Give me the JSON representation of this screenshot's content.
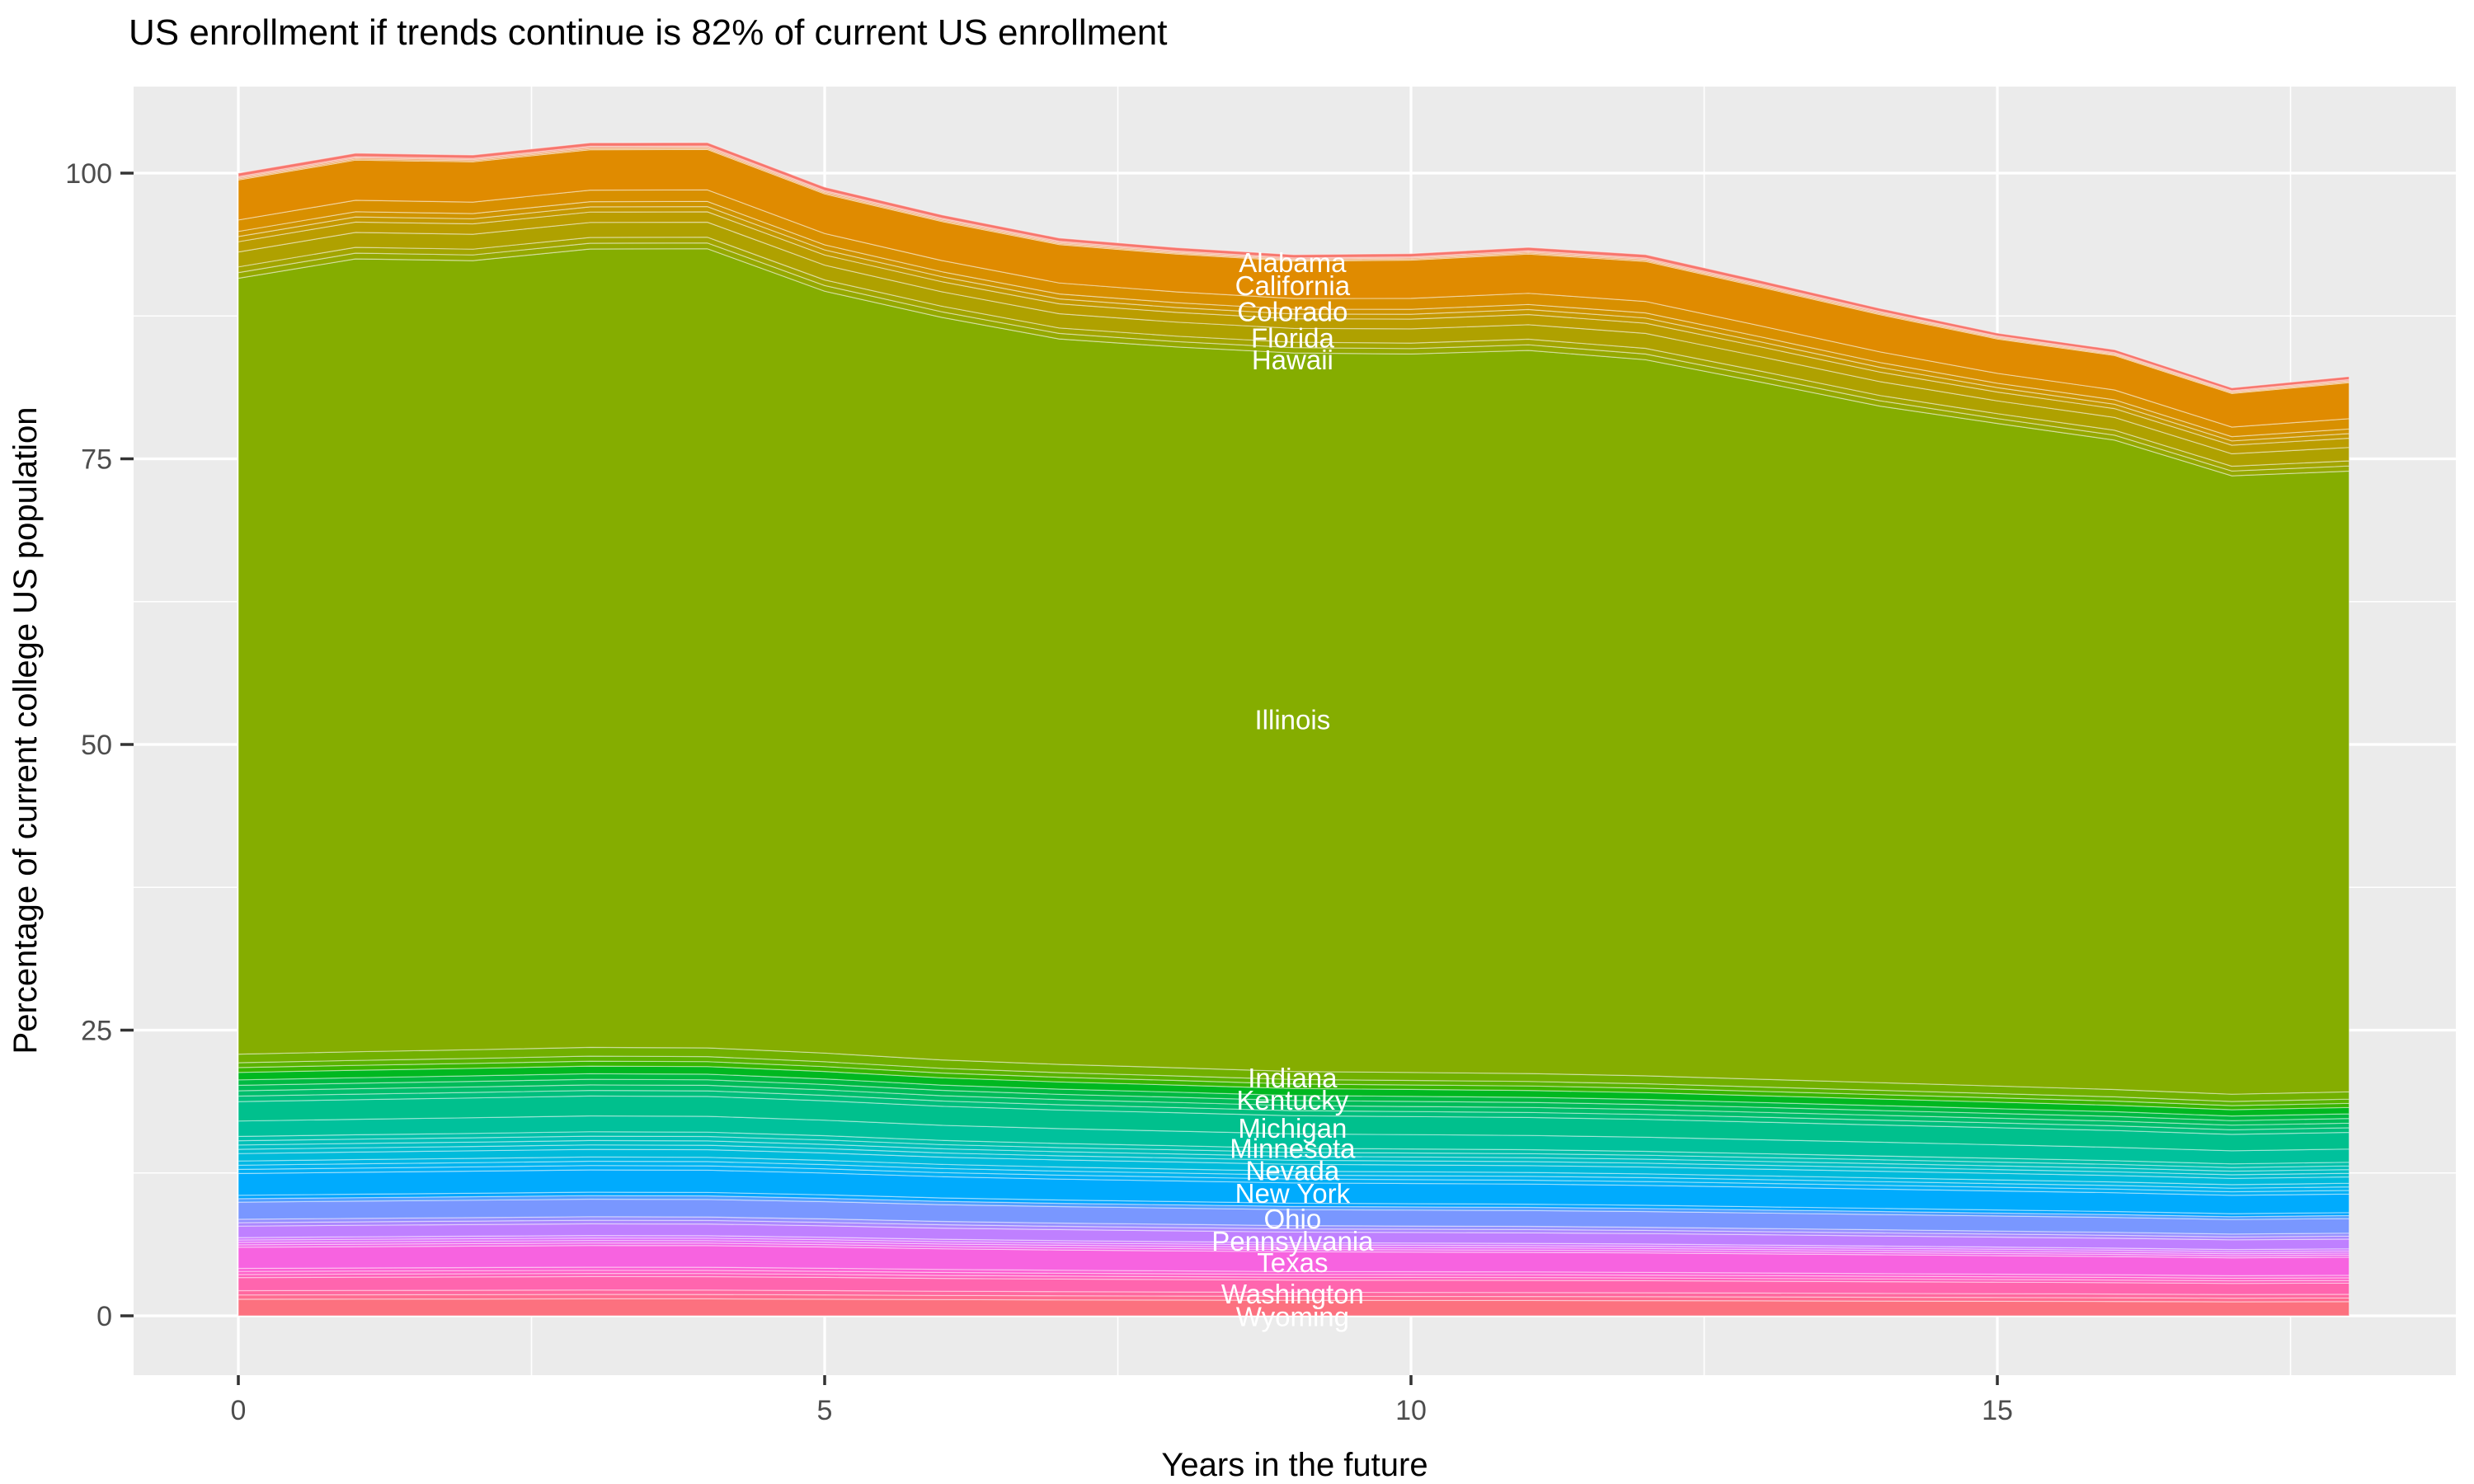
{
  "title": "US enrollment if trends continue is 82% of current US enrollment",
  "x_axis": {
    "title": "Years in the future",
    "tick_labels": [
      "0",
      "5",
      "10",
      "15"
    ],
    "tick_values": [
      0,
      5,
      10,
      15
    ],
    "minor_tick_values": [
      2.5,
      7.5,
      12.5,
      17.5
    ]
  },
  "y_axis": {
    "title": "Percentage of current college US population",
    "tick_labels": [
      "0",
      "25",
      "50",
      "75",
      "100"
    ],
    "tick_values": [
      0,
      25,
      50,
      75,
      100
    ],
    "minor_tick_values": [
      12.5,
      37.5,
      62.5,
      87.5
    ]
  },
  "colors": {
    "panel_background": "#EBEBEB",
    "grid": "#FFFFFF",
    "tick_mark": "#333333",
    "tick_label": "#4D4D4D",
    "axis_title": "#000000",
    "title": "#000000",
    "band_label": "#FFFFFF",
    "band_separator": "rgba(255,255,255,0.45)"
  },
  "chart_data": {
    "type": "area",
    "stacked": true,
    "x": [
      0,
      1,
      2,
      3,
      4,
      5,
      6,
      7,
      8,
      9,
      10,
      11,
      12,
      13,
      14,
      15,
      16,
      17,
      18
    ],
    "x_range": [
      0,
      18
    ],
    "y_unit": "percent",
    "final_total_pct": 82.2,
    "peak_total_pct": 102.7,
    "label_x_year": 8.99,
    "palette": {
      "model": "hcl",
      "h_start": 15,
      "h_step": 7.2,
      "c": 100,
      "l": 65,
      "n": 50
    },
    "shapes": {
      "top": [
        1.0,
        1.005,
        1.005,
        1.01,
        1.01,
        0.99,
        0.975,
        0.96,
        0.945,
        0.935,
        0.955,
        0.98,
        1.0,
        0.965,
        0.93,
        0.86,
        0.86,
        0.837,
        0.9
      ],
      "illinois": [
        1.0,
        1.022,
        1.017,
        1.029,
        1.03,
        0.982,
        0.957,
        0.935,
        0.929,
        0.926,
        0.926,
        0.932,
        0.923,
        0.898,
        0.872,
        0.854,
        0.837,
        0.797,
        0.8
      ],
      "bottom": [
        1.0,
        1.009,
        1.017,
        1.026,
        1.024,
        1.004,
        0.978,
        0.961,
        0.948,
        0.934,
        0.93,
        0.926,
        0.917,
        0.904,
        0.891,
        0.878,
        0.865,
        0.847,
        0.856
      ]
    },
    "series": [
      {
        "label": "Alabama",
        "bands": 1,
        "base": 0.3,
        "shape": "top",
        "label_pct": 92.2
      },
      {
        "label": null,
        "bands": 3,
        "base": 0.3,
        "shape": "top"
      },
      {
        "label": "California",
        "bands": 1,
        "base": 3.5,
        "shape": "top",
        "label_pct": 90.2
      },
      {
        "label": "Colorado",
        "bands": 1,
        "base": 1.0,
        "shape": "top",
        "label_pct": 87.9
      },
      {
        "label": null,
        "bands": 2,
        "base": 0.9,
        "shape": "top"
      },
      {
        "label": "Florida",
        "bands": 1,
        "base": 0.9,
        "shape": "top",
        "label_pct": 85.6
      },
      {
        "label": null,
        "bands": 1,
        "base": 1.3,
        "shape": "top"
      },
      {
        "label": "Hawaii",
        "bands": 1,
        "base": 0.5,
        "shape": "top",
        "label_pct": 83.7
      },
      {
        "label": null,
        "bands": 1,
        "base": 0.5,
        "shape": "top"
      },
      {
        "label": "Illinois",
        "bands": 1,
        "base": 67.9,
        "shape": "illinois",
        "label_pct": 52.2
      },
      {
        "label": "Indiana",
        "bands": 1,
        "base": 0.75,
        "shape": "bottom",
        "label_pct": 20.85
      },
      {
        "label": null,
        "bands": 2,
        "base": 0.85,
        "shape": "bottom"
      },
      {
        "label": "Kentucky",
        "bands": 1,
        "base": 0.65,
        "shape": "bottom",
        "label_pct": 18.9
      },
      {
        "label": null,
        "bands": 4,
        "base": 1.9,
        "shape": "bottom"
      },
      {
        "label": "Michigan",
        "bands": 1,
        "base": 1.7,
        "shape": "bottom",
        "label_pct": 16.45
      },
      {
        "label": "Minnesota",
        "bands": 1,
        "base": 1.35,
        "shape": "bottom",
        "label_pct": 14.7
      },
      {
        "label": null,
        "bands": 4,
        "base": 1.5,
        "shape": "bottom"
      },
      {
        "label": "Nevada",
        "bands": 1,
        "base": 0.65,
        "shape": "bottom",
        "label_pct": 12.75
      },
      {
        "label": null,
        "bands": 3,
        "base": 1.1,
        "shape": "bottom"
      },
      {
        "label": "New York",
        "bands": 1,
        "base": 1.9,
        "shape": "bottom",
        "label_pct": 10.75
      },
      {
        "label": null,
        "bands": 2,
        "base": 0.6,
        "shape": "bottom"
      },
      {
        "label": "Ohio",
        "bands": 1,
        "base": 1.5,
        "shape": "bottom",
        "label_pct": 8.5
      },
      {
        "label": null,
        "bands": 2,
        "base": 0.6,
        "shape": "bottom"
      },
      {
        "label": "Pennsylvania",
        "bands": 1,
        "base": 1.0,
        "shape": "bottom",
        "label_pct": 6.55
      },
      {
        "label": null,
        "bands": 4,
        "base": 0.85,
        "shape": "bottom"
      },
      {
        "label": "Texas",
        "bands": 1,
        "base": 1.85,
        "shape": "bottom",
        "label_pct": 4.7
      },
      {
        "label": null,
        "bands": 3,
        "base": 0.8,
        "shape": "bottom"
      },
      {
        "label": "Washington",
        "bands": 1,
        "base": 1.15,
        "shape": "bottom",
        "label_pct": 1.95
      },
      {
        "label": null,
        "bands": 2,
        "base": 0.75,
        "shape": "bottom"
      },
      {
        "label": "Wyoming",
        "bands": 1,
        "base": 1.45,
        "shape": "bottom",
        "label_pct": -0.05
      }
    ]
  }
}
